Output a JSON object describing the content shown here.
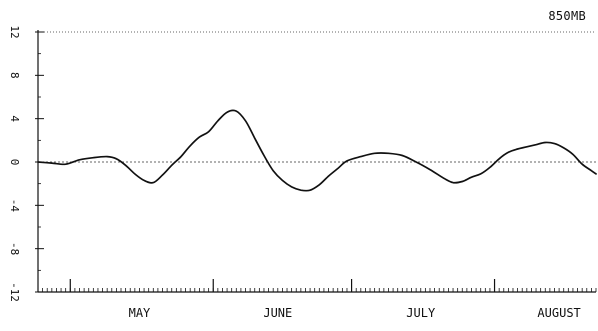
{
  "chart_data": {
    "type": "line",
    "title": "850MB",
    "xlabel": "",
    "ylabel": "",
    "ylim": [
      -12,
      12
    ],
    "yticks": [
      12,
      8,
      4,
      0,
      -4,
      -8,
      -12
    ],
    "month_labels": [
      "MAY",
      "JUNE",
      "JULY",
      "AUGUST"
    ],
    "x_unit": "day",
    "xlim": [
      0,
      121
    ],
    "month_boundaries": [
      7,
      38,
      68,
      99
    ],
    "month_label_days": [
      22,
      52,
      83,
      113
    ],
    "grid": false,
    "series": [
      {
        "x": [
          0,
          3,
          6,
          9,
          12,
          15,
          17,
          19,
          21,
          23,
          25,
          27,
          29,
          31,
          33,
          35,
          37,
          39,
          41,
          43,
          45,
          47,
          49,
          51,
          53,
          55,
          57,
          59,
          61,
          63,
          65,
          67,
          70,
          73,
          76,
          79,
          82,
          85,
          88,
          90,
          92,
          94,
          96,
          98,
          100,
          102,
          104,
          106,
          108,
          110,
          112,
          114,
          116,
          118,
          120,
          121
        ],
        "values": [
          0,
          -0.1,
          -0.2,
          0.2,
          0.4,
          0.5,
          0.3,
          -0.3,
          -1.1,
          -1.7,
          -1.9,
          -1.2,
          -0.3,
          0.5,
          1.5,
          2.3,
          2.8,
          3.8,
          4.6,
          4.7,
          3.8,
          2.2,
          0.6,
          -0.8,
          -1.7,
          -2.3,
          -2.6,
          -2.6,
          -2.1,
          -1.3,
          -0.6,
          0.1,
          0.5,
          0.8,
          0.8,
          0.6,
          0,
          -0.7,
          -1.5,
          -1.9,
          -1.8,
          -1.4,
          -1.1,
          -0.5,
          0.3,
          0.9,
          1.2,
          1.4,
          1.6,
          1.8,
          1.7,
          1.3,
          0.7,
          -0.2,
          -0.8,
          -1.1
        ]
      }
    ]
  }
}
